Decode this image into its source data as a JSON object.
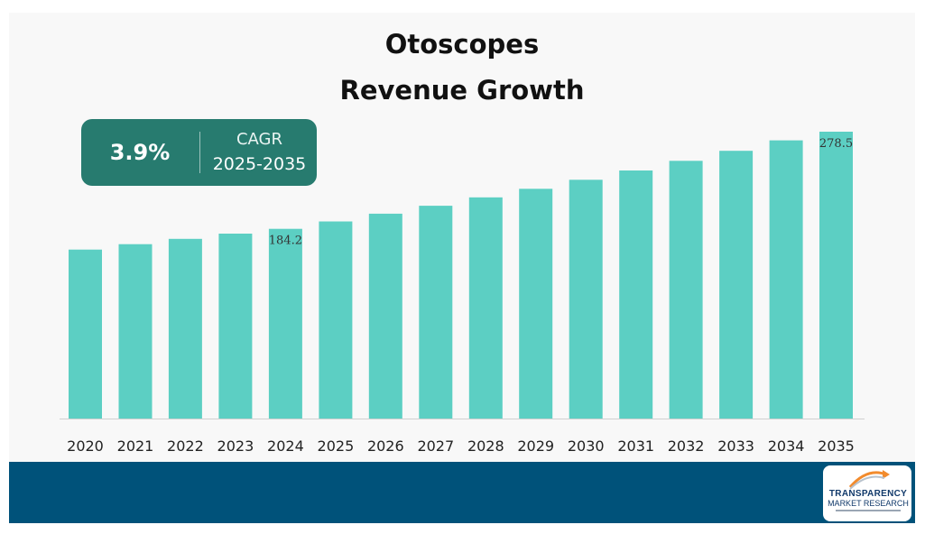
{
  "title_line1": "Otoscopes",
  "title_line2": "Revenue Growth",
  "cagr": {
    "value": "3.9%",
    "label": "CAGR",
    "period": "2025-2035"
  },
  "logo": {
    "line1": "TRANSPARENCY",
    "line2": "MARKET RESEARCH"
  },
  "colors": {
    "bar": "#5ccfc3",
    "cagr_box": "#277b6f",
    "footer": "#00527a",
    "axis": "#d0d0d0"
  },
  "chart_data": {
    "type": "bar",
    "categories": [
      "2020",
      "2021",
      "2022",
      "2023",
      "2024",
      "2025",
      "2026",
      "2027",
      "2028",
      "2029",
      "2030",
      "2031",
      "2032",
      "2033",
      "2034",
      "2035"
    ],
    "values": [
      164.0,
      169.3,
      174.5,
      179.5,
      184.2,
      191.4,
      198.9,
      206.6,
      214.7,
      223.1,
      231.8,
      240.8,
      250.2,
      259.9,
      270.1,
      278.5
    ],
    "data_labels": {
      "2024": "184.2",
      "2035": "278.5"
    },
    "ylim": [
      0,
      278.5
    ],
    "grid": false,
    "legend": "none"
  }
}
